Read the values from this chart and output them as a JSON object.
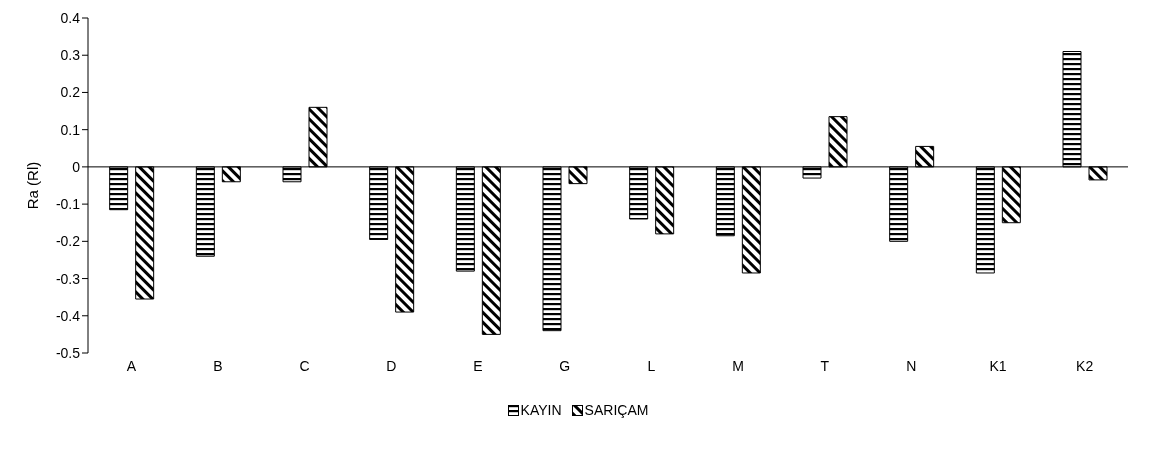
{
  "chart_data": {
    "type": "bar",
    "ylabel": "Ra (Rl)",
    "categories": [
      "A",
      "B",
      "C",
      "D",
      "E",
      "G",
      "L",
      "M",
      "T",
      "N",
      "K1",
      "K2"
    ],
    "series": [
      {
        "name": "KAYIN",
        "color": "#000000",
        "values": [
          -0.115,
          -0.24,
          -0.04,
          -0.195,
          -0.28,
          -0.44,
          -0.14,
          -0.185,
          -0.03,
          -0.2,
          -0.285,
          0.31
        ]
      },
      {
        "name": "SARIÇAM",
        "color": "#000000",
        "values": [
          -0.355,
          -0.04,
          0.16,
          -0.39,
          -0.45,
          -0.045,
          -0.18,
          -0.285,
          0.135,
          0.055,
          -0.15,
          -0.035
        ]
      }
    ],
    "ylim": [
      -0.5,
      0.4
    ],
    "yticks": [
      -0.5,
      -0.4,
      -0.3,
      -0.2,
      -0.1,
      0,
      0.1,
      0.2,
      0.3,
      0.4
    ],
    "grid": false,
    "legend": "bottom",
    "ref_lines": [
      {
        "axis": "y",
        "value": 0,
        "color": "#000000"
      }
    ]
  }
}
